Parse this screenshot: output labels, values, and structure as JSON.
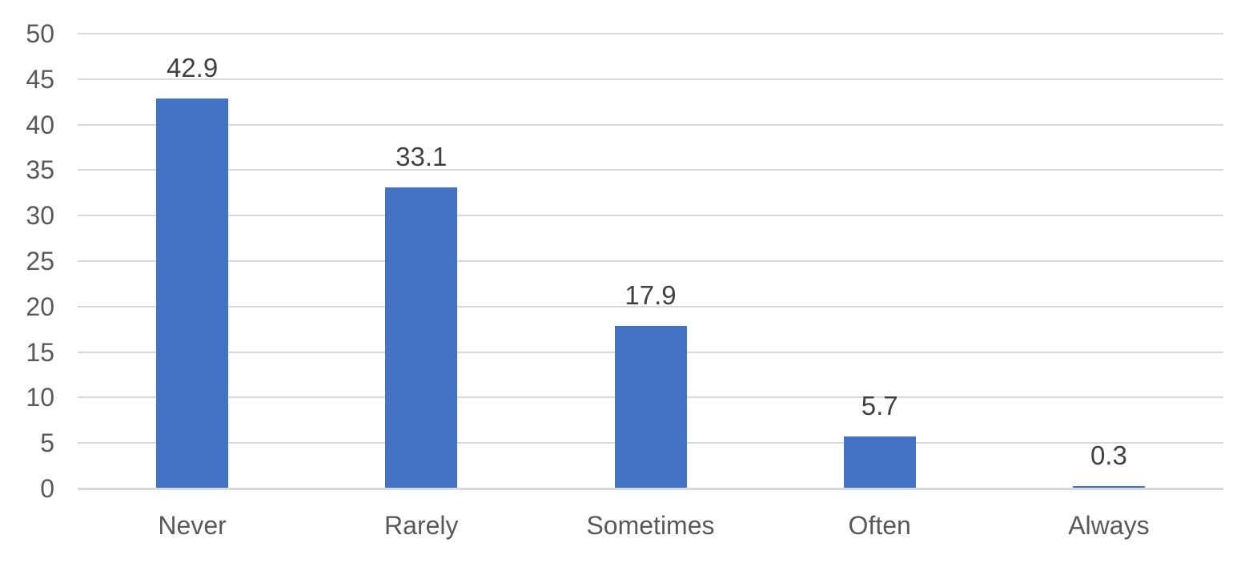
{
  "chart_data": {
    "type": "bar",
    "title": "",
    "xlabel": "",
    "ylabel": "",
    "categories": [
      "Never",
      "Rarely",
      "Sometimes",
      "Often",
      "Always"
    ],
    "values": [
      42.9,
      33.1,
      17.9,
      5.7,
      0.3
    ],
    "data_labels": [
      "42.9",
      "33.1",
      "17.9",
      "5.7",
      "0.3"
    ],
    "ylim": [
      0,
      50
    ],
    "yticks": [
      0,
      5,
      10,
      15,
      20,
      25,
      30,
      35,
      40,
      45,
      50
    ],
    "grid": true,
    "legend": false,
    "bar_color": "#4472C4",
    "gridline_color": "#D9D9D9",
    "axis_line_color": "#D9D9D9",
    "tick_label_color": "#595959",
    "data_label_color": "#404040",
    "background_color": "#FFFFFF"
  }
}
